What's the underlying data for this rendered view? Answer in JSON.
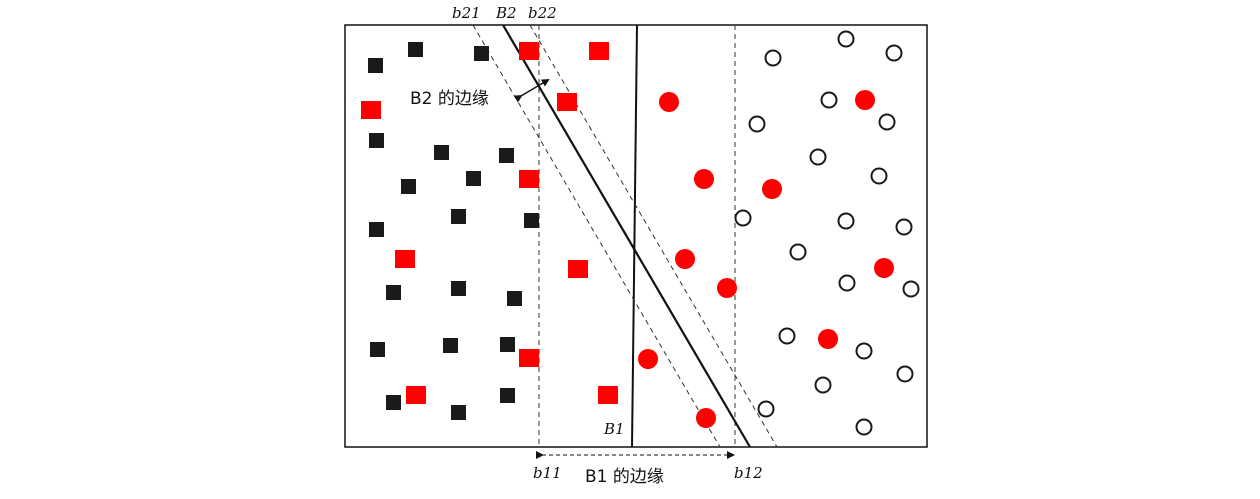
{
  "diagram": {
    "labels": {
      "b21": "b21",
      "B2": "B2",
      "b22": "b22",
      "B1": "B1",
      "b11": "b11",
      "b12": "b12",
      "B2_margin": "B2 的边缘",
      "B1_margin": "B1 的边缘"
    },
    "colors": {
      "black_square": "#1a1a1a",
      "red_marker": "#ff0000",
      "open_circle_stroke": "#1a1a1a",
      "line": "#111111",
      "dashed_line": "#333333"
    },
    "marker_counts": {
      "black_squares": 19,
      "red_squares": 11,
      "red_circles": 11,
      "open_circles": 22
    }
  }
}
